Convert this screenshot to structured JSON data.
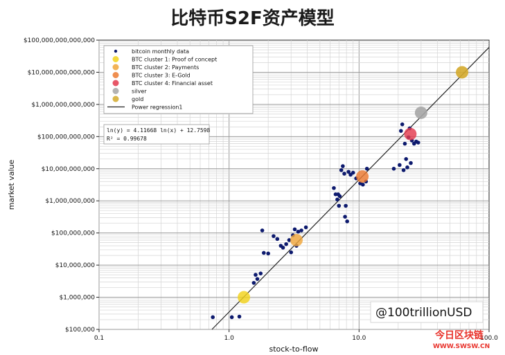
{
  "page_title": "比特币S2F资产模型",
  "watermark": "@100trillionUSD",
  "brand": {
    "name": "今日区块链",
    "url": "WWW.SWSW.CN"
  },
  "chart_data": {
    "type": "scatter",
    "title": "比特币S2F资产模型",
    "xlabel": "stock-to-flow",
    "ylabel": "market value",
    "x_scale": "log",
    "y_scale": "log",
    "xlim": [
      0.1,
      100
    ],
    "ylim": [
      100000,
      100000000000000
    ],
    "grid": true,
    "legend_position": "top-left",
    "x_ticks": [
      {
        "value": 0.1,
        "label": "0.1"
      },
      {
        "value": 1,
        "label": "1.0"
      },
      {
        "value": 10,
        "label": "10.0"
      },
      {
        "value": 100,
        "label": "100.0"
      }
    ],
    "y_ticks": [
      {
        "value": 100000,
        "label": "$100,000"
      },
      {
        "value": 1000000,
        "label": "$1,000,000"
      },
      {
        "value": 10000000,
        "label": "$10,000,000"
      },
      {
        "value": 100000000,
        "label": "$100,000,000"
      },
      {
        "value": 1000000000,
        "label": "$1,000,000,000"
      },
      {
        "value": 10000000000,
        "label": "$10,000,000,000"
      },
      {
        "value": 100000000000,
        "label": "$100,000,000,000"
      },
      {
        "value": 1000000000000,
        "label": "$1,000,000,000,000"
      },
      {
        "value": 10000000000000,
        "label": "$10,000,000,000,000"
      },
      {
        "value": 100000000000000,
        "label": "$100,000,000,000,000"
      }
    ],
    "regression": {
      "name": "Power regression1",
      "equation": "ln(y) = 4.11668 ln(x) + 12.7598",
      "r2_label": "R² = 0.99678",
      "slope": 4.11668,
      "intercept": 12.7598,
      "color": "#222222"
    },
    "series": [
      {
        "name": "bitcoin monthly data",
        "kind": "monthly",
        "color": "#0d1a6e",
        "points": [
          [
            0.75,
            240000
          ],
          [
            1.05,
            240000
          ],
          [
            1.2,
            250000
          ],
          [
            1.55,
            2800000
          ],
          [
            1.6,
            5000000
          ],
          [
            1.65,
            3700000
          ],
          [
            1.75,
            5500000
          ],
          [
            1.8,
            120000000
          ],
          [
            1.85,
            24000000
          ],
          [
            2.0,
            23000000
          ],
          [
            2.2,
            80000000
          ],
          [
            2.35,
            65000000
          ],
          [
            2.5,
            40000000
          ],
          [
            2.6,
            35000000
          ],
          [
            2.75,
            45000000
          ],
          [
            2.9,
            60000000
          ],
          [
            3.0,
            25000000
          ],
          [
            3.1,
            85000000
          ],
          [
            3.2,
            130000000
          ],
          [
            3.3,
            40000000
          ],
          [
            3.4,
            110000000
          ],
          [
            3.6,
            120000000
          ],
          [
            3.9,
            150000000
          ],
          [
            6.4,
            2500000000
          ],
          [
            6.6,
            1600000000
          ],
          [
            6.8,
            1100000000
          ],
          [
            6.9,
            1600000000
          ],
          [
            7.0,
            700000000
          ],
          [
            7.1,
            1400000000
          ],
          [
            7.3,
            9000000000
          ],
          [
            7.5,
            12000000000
          ],
          [
            7.7,
            7000000000
          ],
          [
            7.8,
            320000000
          ],
          [
            7.9,
            700000000
          ],
          [
            8.1,
            230000000
          ],
          [
            8.3,
            8000000000
          ],
          [
            8.6,
            6500000000
          ],
          [
            9.0,
            7500000000
          ],
          [
            9.5,
            5000000000
          ],
          [
            10.2,
            3500000000
          ],
          [
            10.7,
            3200000000
          ],
          [
            11.3,
            4000000000
          ],
          [
            11.5,
            10000000000
          ],
          [
            18.5,
            10000000000
          ],
          [
            20.5,
            13000000000
          ],
          [
            21.0,
            150000000000
          ],
          [
            21.5,
            240000000000
          ],
          [
            22.0,
            9000000000
          ],
          [
            22.5,
            60000000000
          ],
          [
            23.0,
            20000000000
          ],
          [
            23.5,
            11000000000
          ],
          [
            24.0,
            95000000000
          ],
          [
            24.5,
            180000000000
          ],
          [
            25.0,
            15000000000
          ],
          [
            25.5,
            75000000000
          ],
          [
            26.5,
            60000000000
          ],
          [
            27.5,
            70000000000
          ],
          [
            28.5,
            65000000000
          ]
        ]
      },
      {
        "name": "BTC cluster 1: Proof of concept",
        "kind": "cluster",
        "color": "#f2d21b",
        "points": [
          [
            1.3,
            1000000
          ]
        ]
      },
      {
        "name": "BTC cluster 2: Payments",
        "kind": "cluster",
        "color": "#f0a63a",
        "points": [
          [
            3.3,
            60000000
          ]
        ]
      },
      {
        "name": "BTC cluster 3: E-Gold",
        "kind": "cluster",
        "color": "#ec7a31",
        "points": [
          [
            10.6,
            5700000000
          ]
        ]
      },
      {
        "name": "BTC cluster 4: Financial asset",
        "kind": "cluster",
        "color": "#e33a4e",
        "points": [
          [
            24.8,
            120000000000
          ]
        ]
      },
      {
        "name": "silver",
        "kind": "asset",
        "color": "#a6a6a6",
        "points": [
          [
            30,
            550000000000
          ]
        ]
      },
      {
        "name": "gold",
        "kind": "asset",
        "color": "#d4aa2c",
        "points": [
          [
            62,
            10000000000000
          ]
        ]
      }
    ]
  }
}
